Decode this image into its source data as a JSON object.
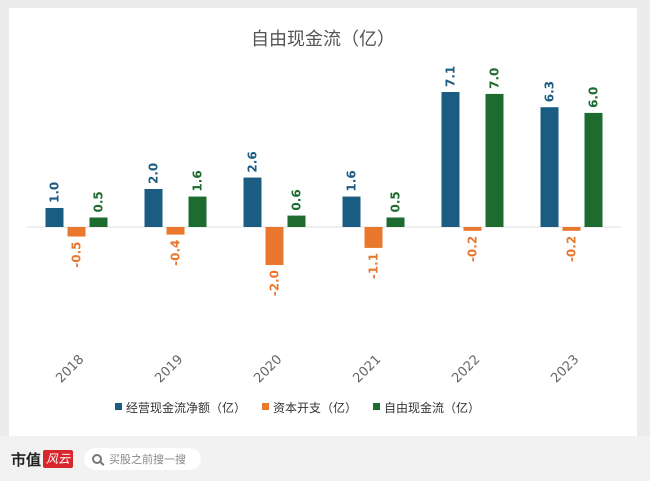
{
  "chart_data": {
    "type": "bar",
    "title": "自由现金流（亿）",
    "categories": [
      "2018",
      "2019",
      "2020",
      "2021",
      "2022",
      "2023"
    ],
    "series": [
      {
        "name": "经营现金流净额（亿）",
        "color": "#1b5c83",
        "values": [
          1.0,
          2.0,
          2.6,
          1.6,
          7.1,
          6.3
        ]
      },
      {
        "name": "资本开支（亿）",
        "color": "#e9782e",
        "values": [
          -0.5,
          -0.4,
          -2.0,
          -1.1,
          -0.2,
          -0.2
        ]
      },
      {
        "name": "自由现金流（亿）",
        "color": "#1d6b2f",
        "values": [
          0.5,
          1.6,
          0.6,
          0.5,
          7.0,
          6.0
        ]
      }
    ],
    "ylim": [
      -2.5,
      7.5
    ],
    "grid": false,
    "legend_position": "bottom"
  },
  "footer": {
    "brand": "市值",
    "brand_mark": "风云",
    "search_placeholder": "买股之前搜一搜"
  }
}
